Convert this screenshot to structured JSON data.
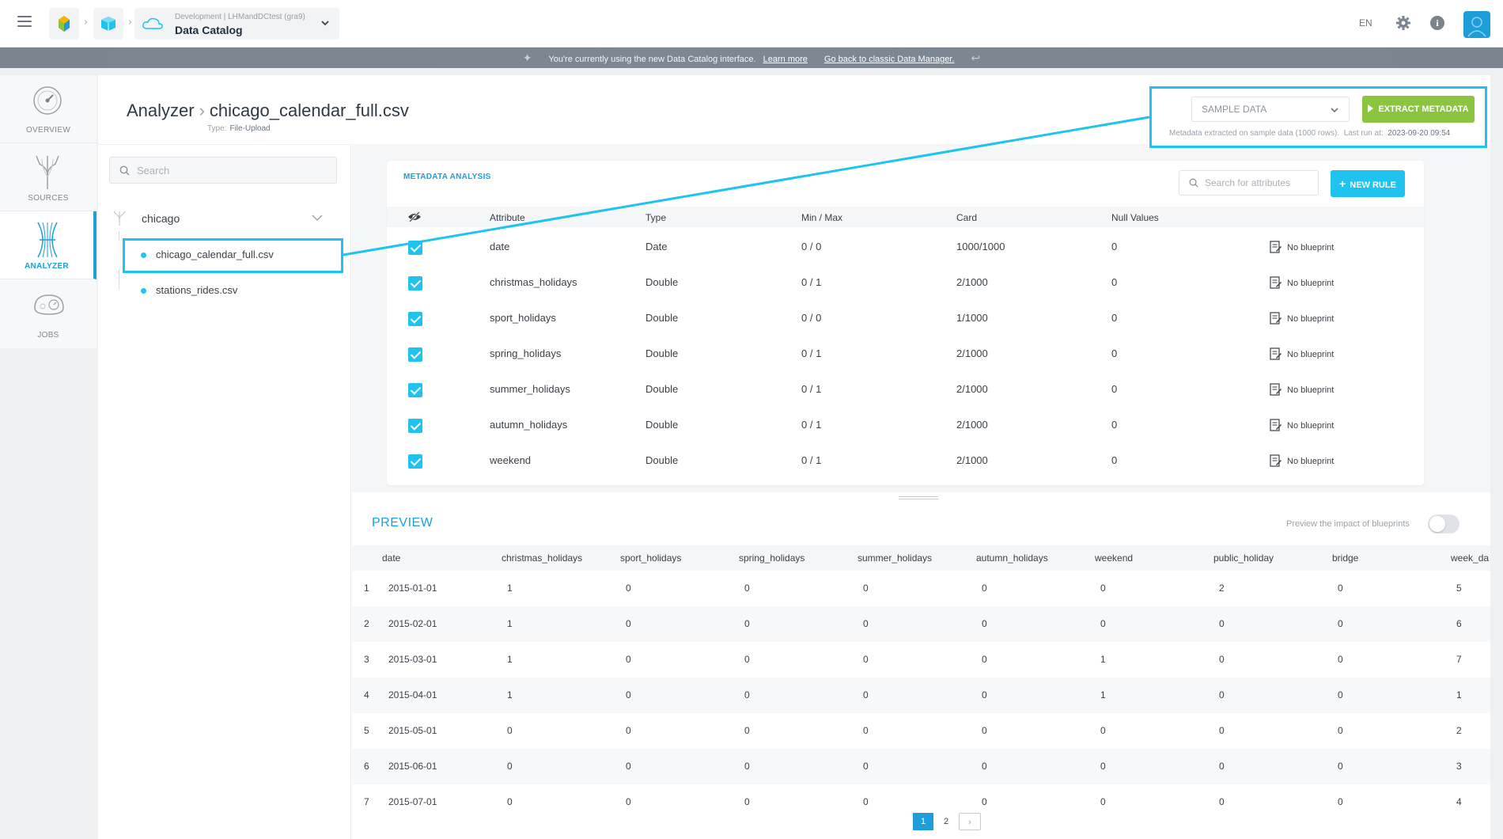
{
  "header": {
    "project_sub": "Development | LHMandDCtest (gra9)",
    "project_name": "Data Catalog",
    "lang": "EN",
    "icons": [
      "menu-icon",
      "home-logo-icon",
      "cube-icon",
      "cloud-icon",
      "chevron-down-icon",
      "gear-icon",
      "info-icon",
      "user-icon"
    ]
  },
  "banner": {
    "text": "You're currently using the new Data Catalog interface.",
    "learn_more": "Learn more",
    "back_link": "Go back to classic Data Manager."
  },
  "nav": {
    "items": [
      {
        "label": "OVERVIEW",
        "icon": "gauge-icon"
      },
      {
        "label": "SOURCES",
        "icon": "sources-icon"
      },
      {
        "label": "ANALYZER",
        "icon": "analyzer-icon"
      },
      {
        "label": "JOBS",
        "icon": "jobs-icon"
      }
    ],
    "active": "ANALYZER"
  },
  "page": {
    "breadcrumb_root": "Analyzer",
    "file_name": "chicago_calendar_full.csv",
    "type_label": "Type:",
    "type_value": "File-Upload"
  },
  "toolbar": {
    "sample_select": "SAMPLE DATA",
    "extract_label": "EXTRACT METADATA",
    "meta_note": "Metadata extracted on sample data (1000 rows).",
    "last_run_label": "Last run at:",
    "last_run_value": "2023-09-20 09:54"
  },
  "tree": {
    "search_placeholder": "Search",
    "folder": "chicago",
    "files": [
      "chicago_calendar_full.csv",
      "stations_rides.csv"
    ],
    "selected": "chicago_calendar_full.csv"
  },
  "metadata": {
    "title": "METADATA ANALYSIS",
    "search_placeholder": "Search for attributes",
    "new_rule_label": "NEW RULE",
    "columns": [
      "Attribute",
      "Type",
      "Min / Max",
      "Card",
      "Null Values"
    ],
    "rows": [
      {
        "attribute": "date",
        "type": "Date",
        "minmax": "0 / 0",
        "card": "1000/1000",
        "nulls": "0",
        "blueprint": "No blueprint",
        "checked": true
      },
      {
        "attribute": "christmas_holidays",
        "type": "Double",
        "minmax": "0 / 1",
        "card": "2/1000",
        "nulls": "0",
        "blueprint": "No blueprint",
        "checked": true
      },
      {
        "attribute": "sport_holidays",
        "type": "Double",
        "minmax": "0 / 0",
        "card": "1/1000",
        "nulls": "0",
        "blueprint": "No blueprint",
        "checked": true
      },
      {
        "attribute": "spring_holidays",
        "type": "Double",
        "minmax": "0 / 1",
        "card": "2/1000",
        "nulls": "0",
        "blueprint": "No blueprint",
        "checked": true
      },
      {
        "attribute": "summer_holidays",
        "type": "Double",
        "minmax": "0 / 1",
        "card": "2/1000",
        "nulls": "0",
        "blueprint": "No blueprint",
        "checked": true
      },
      {
        "attribute": "autumn_holidays",
        "type": "Double",
        "minmax": "0 / 1",
        "card": "2/1000",
        "nulls": "0",
        "blueprint": "No blueprint",
        "checked": true
      },
      {
        "attribute": "weekend",
        "type": "Double",
        "minmax": "0 / 1",
        "card": "2/1000",
        "nulls": "0",
        "blueprint": "No blueprint",
        "checked": true
      }
    ]
  },
  "preview": {
    "title": "PREVIEW",
    "impact_label": "Preview the impact of blueprints",
    "impact_on": false,
    "columns": [
      "date",
      "christmas_holidays",
      "sport_holidays",
      "spring_holidays",
      "summer_holidays",
      "autumn_holidays",
      "weekend",
      "public_holiday",
      "bridge",
      "week_da"
    ],
    "rows": [
      [
        "1",
        "2015-01-01",
        "1",
        "0",
        "0",
        "0",
        "0",
        "0",
        "2",
        "0",
        "5"
      ],
      [
        "2",
        "2015-02-01",
        "1",
        "0",
        "0",
        "0",
        "0",
        "0",
        "0",
        "0",
        "6"
      ],
      [
        "3",
        "2015-03-01",
        "1",
        "0",
        "0",
        "0",
        "0",
        "1",
        "0",
        "0",
        "7"
      ],
      [
        "4",
        "2015-04-01",
        "1",
        "0",
        "0",
        "0",
        "0",
        "1",
        "0",
        "0",
        "1"
      ],
      [
        "5",
        "2015-05-01",
        "0",
        "0",
        "0",
        "0",
        "0",
        "0",
        "0",
        "0",
        "2"
      ],
      [
        "6",
        "2015-06-01",
        "0",
        "0",
        "0",
        "0",
        "0",
        "0",
        "0",
        "0",
        "3"
      ],
      [
        "7",
        "2015-07-01",
        "0",
        "0",
        "0",
        "0",
        "0",
        "0",
        "0",
        "0",
        "4"
      ]
    ],
    "pages": [
      "1",
      "2"
    ],
    "current_page": "1"
  },
  "colors": {
    "accent": "#1ec3ef",
    "brand_blue": "#1e9ed9",
    "extract_green": "#8bc53f"
  }
}
